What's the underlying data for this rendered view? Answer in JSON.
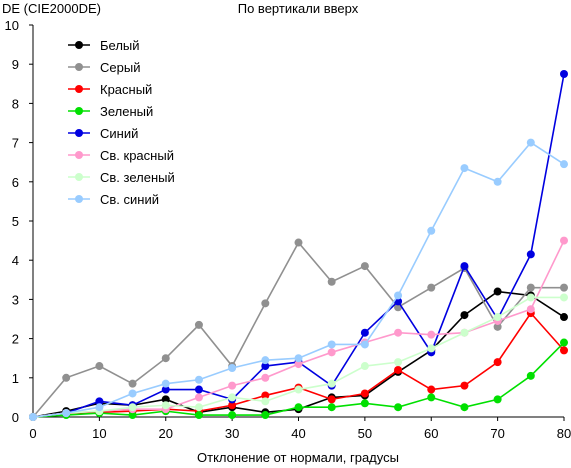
{
  "chart_data": {
    "type": "line",
    "title": "По вертикали вверх",
    "ylabel": "DE (CIE2000DE)",
    "xlabel": "Отклонение от нормали, градусы",
    "xlim": [
      0,
      80
    ],
    "ylim": [
      0,
      10
    ],
    "x_ticks": [
      "0",
      "10",
      "20",
      "30",
      "40",
      "50",
      "60",
      "70",
      "80"
    ],
    "y_ticks": [
      "0",
      "1",
      "2",
      "3",
      "4",
      "5",
      "6",
      "7",
      "8",
      "9",
      "10"
    ],
    "grid": false,
    "legend": "top-left",
    "x": [
      0,
      5,
      10,
      15,
      20,
      25,
      30,
      35,
      40,
      45,
      50,
      55,
      60,
      65,
      70,
      75,
      80
    ],
    "series": [
      {
        "name": "Белый",
        "color": "#000000",
        "values": [
          0,
          0.15,
          0.35,
          0.3,
          0.45,
          0.12,
          0.25,
          0.12,
          0.2,
          0.5,
          0.55,
          1.15,
          1.7,
          2.6,
          3.2,
          3.1,
          2.55
        ]
      },
      {
        "name": "Серый",
        "color": "#909090",
        "values": [
          0,
          1.0,
          1.3,
          0.85,
          1.5,
          2.35,
          1.3,
          2.9,
          4.45,
          3.45,
          3.85,
          2.8,
          3.3,
          3.8,
          2.3,
          3.3,
          3.3
        ]
      },
      {
        "name": "Красный",
        "color": "#ff0000",
        "values": [
          0,
          0.1,
          0.12,
          0.15,
          0.2,
          0.15,
          0.3,
          0.55,
          0.75,
          0.45,
          0.6,
          1.2,
          0.7,
          0.8,
          1.4,
          2.65,
          1.7
        ]
      },
      {
        "name": "Зеленый",
        "color": "#00e000",
        "values": [
          0,
          0.05,
          0.1,
          0.05,
          0.15,
          0.05,
          0.05,
          0.05,
          0.25,
          0.25,
          0.35,
          0.25,
          0.5,
          0.25,
          0.45,
          1.05,
          1.9
        ]
      },
      {
        "name": "Синий",
        "color": "#0000e0",
        "values": [
          0,
          0.1,
          0.4,
          0.3,
          0.7,
          0.7,
          0.45,
          1.3,
          1.4,
          0.8,
          2.15,
          2.95,
          1.65,
          3.85,
          2.5,
          4.15,
          8.75
        ]
      },
      {
        "name": "Св. красный",
        "color": "#ff99cc",
        "values": [
          0,
          0.1,
          0.15,
          0.2,
          0.2,
          0.5,
          0.8,
          1.0,
          1.35,
          1.65,
          1.9,
          2.15,
          2.1,
          2.15,
          2.45,
          2.75,
          4.5
        ]
      },
      {
        "name": "Св. зеленый",
        "color": "#ccffcc",
        "values": [
          0,
          0.1,
          0.15,
          0.25,
          0.3,
          0.25,
          0.5,
          0.4,
          0.7,
          0.85,
          1.3,
          1.4,
          1.75,
          2.15,
          2.55,
          3.05,
          3.05
        ]
      },
      {
        "name": "Св. синий",
        "color": "#99ccff",
        "values": [
          0,
          0.1,
          0.25,
          0.6,
          0.85,
          0.95,
          1.25,
          1.45,
          1.5,
          1.85,
          1.85,
          3.1,
          4.75,
          6.35,
          6.0,
          7.0,
          6.45
        ]
      }
    ]
  }
}
